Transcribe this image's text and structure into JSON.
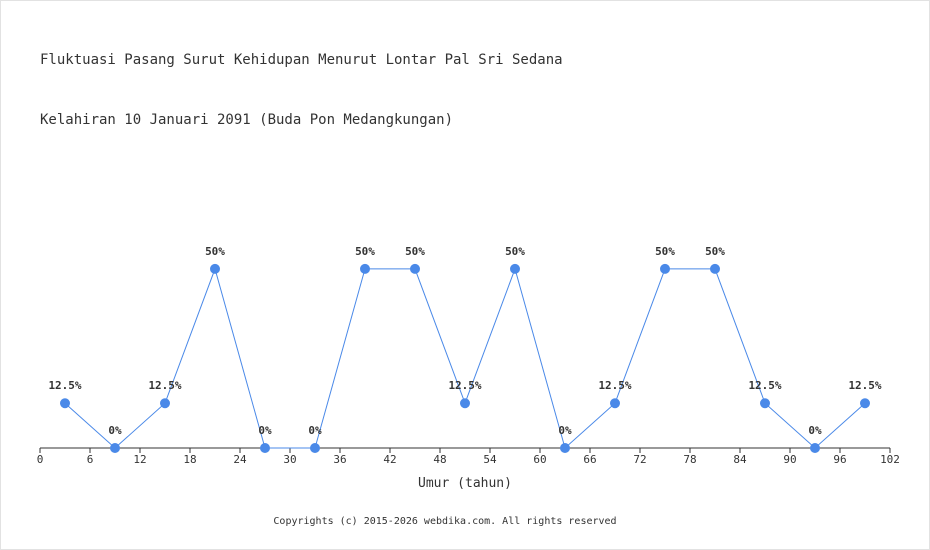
{
  "chart_data": {
    "type": "line",
    "title": "Fluktuasi Pasang Surut Kehidupan Menurut Lontar Pal Sri Sedana",
    "subtitle": "Kelahiran 10 Januari 2091 (Buda Pon Medangkungan)",
    "xlabel": "Umur (tahun)",
    "ylabel": "",
    "xlim": [
      0,
      102
    ],
    "ylim": [
      0,
      100
    ],
    "x_ticks": [
      0,
      6,
      12,
      18,
      24,
      30,
      36,
      42,
      48,
      54,
      60,
      66,
      72,
      78,
      84,
      90,
      96,
      102
    ],
    "grid": false,
    "series": [
      {
        "color": "#4a89e8",
        "x": [
          3,
          9,
          15,
          21,
          27,
          33,
          39,
          45,
          51,
          57,
          63,
          69,
          75,
          81,
          87,
          93,
          99
        ],
        "values": [
          12.5,
          0,
          12.5,
          50,
          0,
          0,
          50,
          50,
          12.5,
          50,
          0,
          12.5,
          50,
          50,
          12.5,
          0,
          12.5
        ],
        "labels": [
          "12.5%",
          "0%",
          "12.5%",
          "50%",
          "0%",
          "0%",
          "50%",
          "50%",
          "12.5%",
          "50%",
          "0%",
          "12.5%",
          "50%",
          "50%",
          "12.5%",
          "0%",
          "12.5%"
        ]
      }
    ]
  },
  "footer": {
    "copyright": "Copyrights (c) 2015-2026 webdika.com. All rights reserved"
  }
}
